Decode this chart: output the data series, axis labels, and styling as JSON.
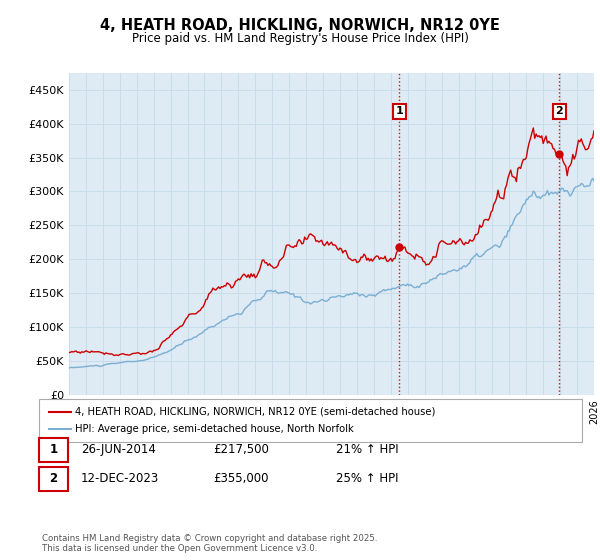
{
  "title": "4, HEATH ROAD, HICKLING, NORWICH, NR12 0YE",
  "subtitle": "Price paid vs. HM Land Registry's House Price Index (HPI)",
  "ylabel_ticks": [
    "£0",
    "£50K",
    "£100K",
    "£150K",
    "£200K",
    "£250K",
    "£300K",
    "£350K",
    "£400K",
    "£450K"
  ],
  "ylim": [
    0,
    475000
  ],
  "xlim_start": 1995.0,
  "xlim_end": 2026.0,
  "sale1_date": "26-JUN-2014",
  "sale1_price": 217500,
  "sale1_hpi": "21% ↑ HPI",
  "sale1_x": 2014.5,
  "sale1_label": "1",
  "sale2_date": "12-DEC-2023",
  "sale2_price": 355000,
  "sale2_hpi": "25% ↑ HPI",
  "sale2_x": 2023.95,
  "sale2_label": "2",
  "legend_label_red": "4, HEATH ROAD, HICKLING, NORWICH, NR12 0YE (semi-detached house)",
  "legend_label_blue": "HPI: Average price, semi-detached house, North Norfolk",
  "footer_text": "Contains HM Land Registry data © Crown copyright and database right 2025.\nThis data is licensed under the Open Government Licence v3.0.",
  "red_color": "#cc0000",
  "blue_color": "#7bafd4",
  "grid_color": "#c8dcea",
  "bg_color": "#deeaf4",
  "plot_bg": "#ffffff",
  "vline_color": "#cc0000",
  "annotation_box_color": "#cc0000"
}
